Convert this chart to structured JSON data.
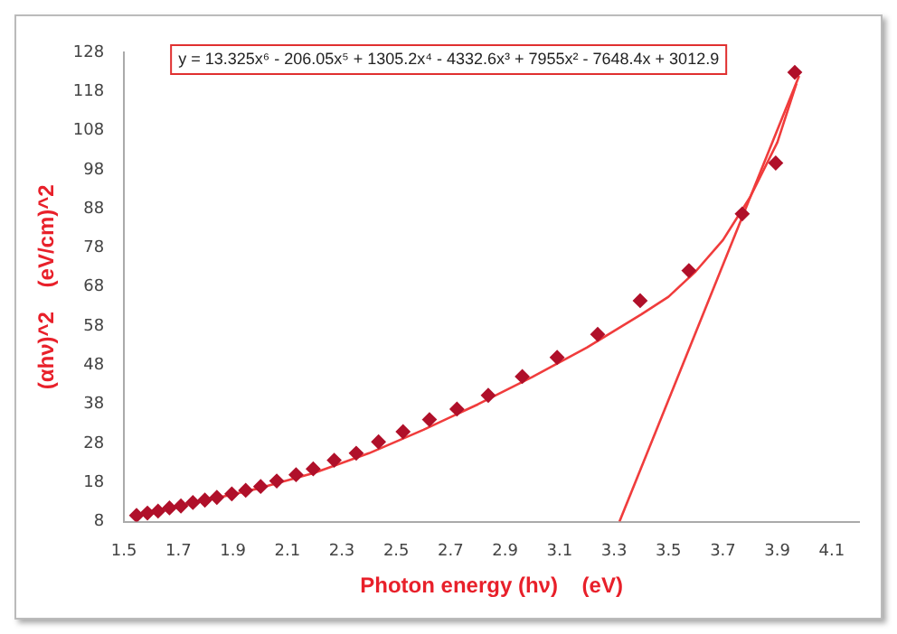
{
  "chart_data": {
    "type": "scatter",
    "xlabel": "Photon energy (hν)    (eV)",
    "ylabel": "(αhν)^2    (eV/cm)^2",
    "annotations": [
      "y = 13.325x⁶ - 206.05x⁵ + 1305.2x⁴ - 4332.6x³ + 7955x² - 7648.4x + 3012.9"
    ],
    "xlim": [
      1.5,
      4.2
    ],
    "xticks": [
      1.5,
      1.7,
      1.9,
      2.1,
      2.3,
      2.5,
      2.7,
      2.9,
      3.1,
      3.3,
      3.5,
      3.7,
      3.9,
      4.1
    ],
    "ylim": [
      8,
      128
    ],
    "yticks": [
      8,
      18,
      28,
      38,
      48,
      58,
      68,
      78,
      88,
      98,
      108,
      118,
      128
    ],
    "grid": false,
    "legend": false,
    "series": [
      {
        "marker": "diamond",
        "color": "#b0102a",
        "x": [
          1.546,
          1.586,
          1.625,
          1.667,
          1.709,
          1.753,
          1.797,
          1.841,
          1.896,
          1.947,
          2.002,
          2.061,
          2.132,
          2.195,
          2.272,
          2.353,
          2.435,
          2.525,
          2.622,
          2.723,
          2.838,
          2.963,
          3.091,
          3.24,
          3.396,
          3.575,
          3.771,
          3.894,
          3.964
        ],
        "values": [
          9.6,
          10.2,
          10.7,
          11.5,
          12.0,
          12.9,
          13.5,
          14.2,
          15.1,
          16.0,
          17.0,
          18.4,
          20.0,
          21.5,
          23.7,
          25.5,
          28.4,
          31.0,
          34.1,
          36.8,
          40.3,
          45.1,
          50.0,
          55.9,
          64.5,
          72.2,
          86.7,
          99.7,
          122.9
        ]
      },
      {
        "type": "line",
        "marker": "none",
        "color": "#f03c3c",
        "x": [
          1.55,
          1.8,
          2.0,
          2.2,
          2.4,
          2.6,
          2.8,
          3.0,
          3.2,
          3.4,
          3.5,
          3.6,
          3.7,
          3.8,
          3.9,
          3.97
        ],
        "values": [
          10,
          13.4,
          16.6,
          20.5,
          25.5,
          31.5,
          38,
          45,
          52.5,
          61,
          65.5,
          72,
          80,
          91,
          105,
          120
        ]
      },
      {
        "type": "line",
        "marker": "none",
        "color": "#f03c3c",
        "x": [
          3.32,
          3.98
        ],
        "values": [
          8,
          122
        ]
      }
    ]
  }
}
